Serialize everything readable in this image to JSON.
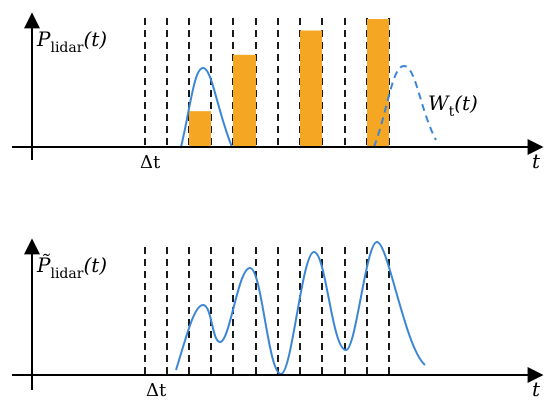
{
  "colors": {
    "axis": "#000000",
    "curve": "#3a86d4",
    "bar": "#f5a623",
    "grid_dash": "#000000"
  },
  "top_panel": {
    "ylabel_symbol": "P",
    "ylabel_subscript": "lidar",
    "ylabel_arg": "(t)",
    "xlabel": "t",
    "tick_label": "Δt",
    "window_symbol": "W",
    "window_subscript": "t",
    "window_arg": "(t)",
    "bars": [
      0.28,
      0.72,
      0.91,
      1.0
    ]
  },
  "bottom_panel": {
    "ylabel_symbol": "P̃",
    "ylabel_subscript": "lidar",
    "ylabel_arg": "(t)",
    "xlabel": "t",
    "tick_label": "Δt"
  }
}
